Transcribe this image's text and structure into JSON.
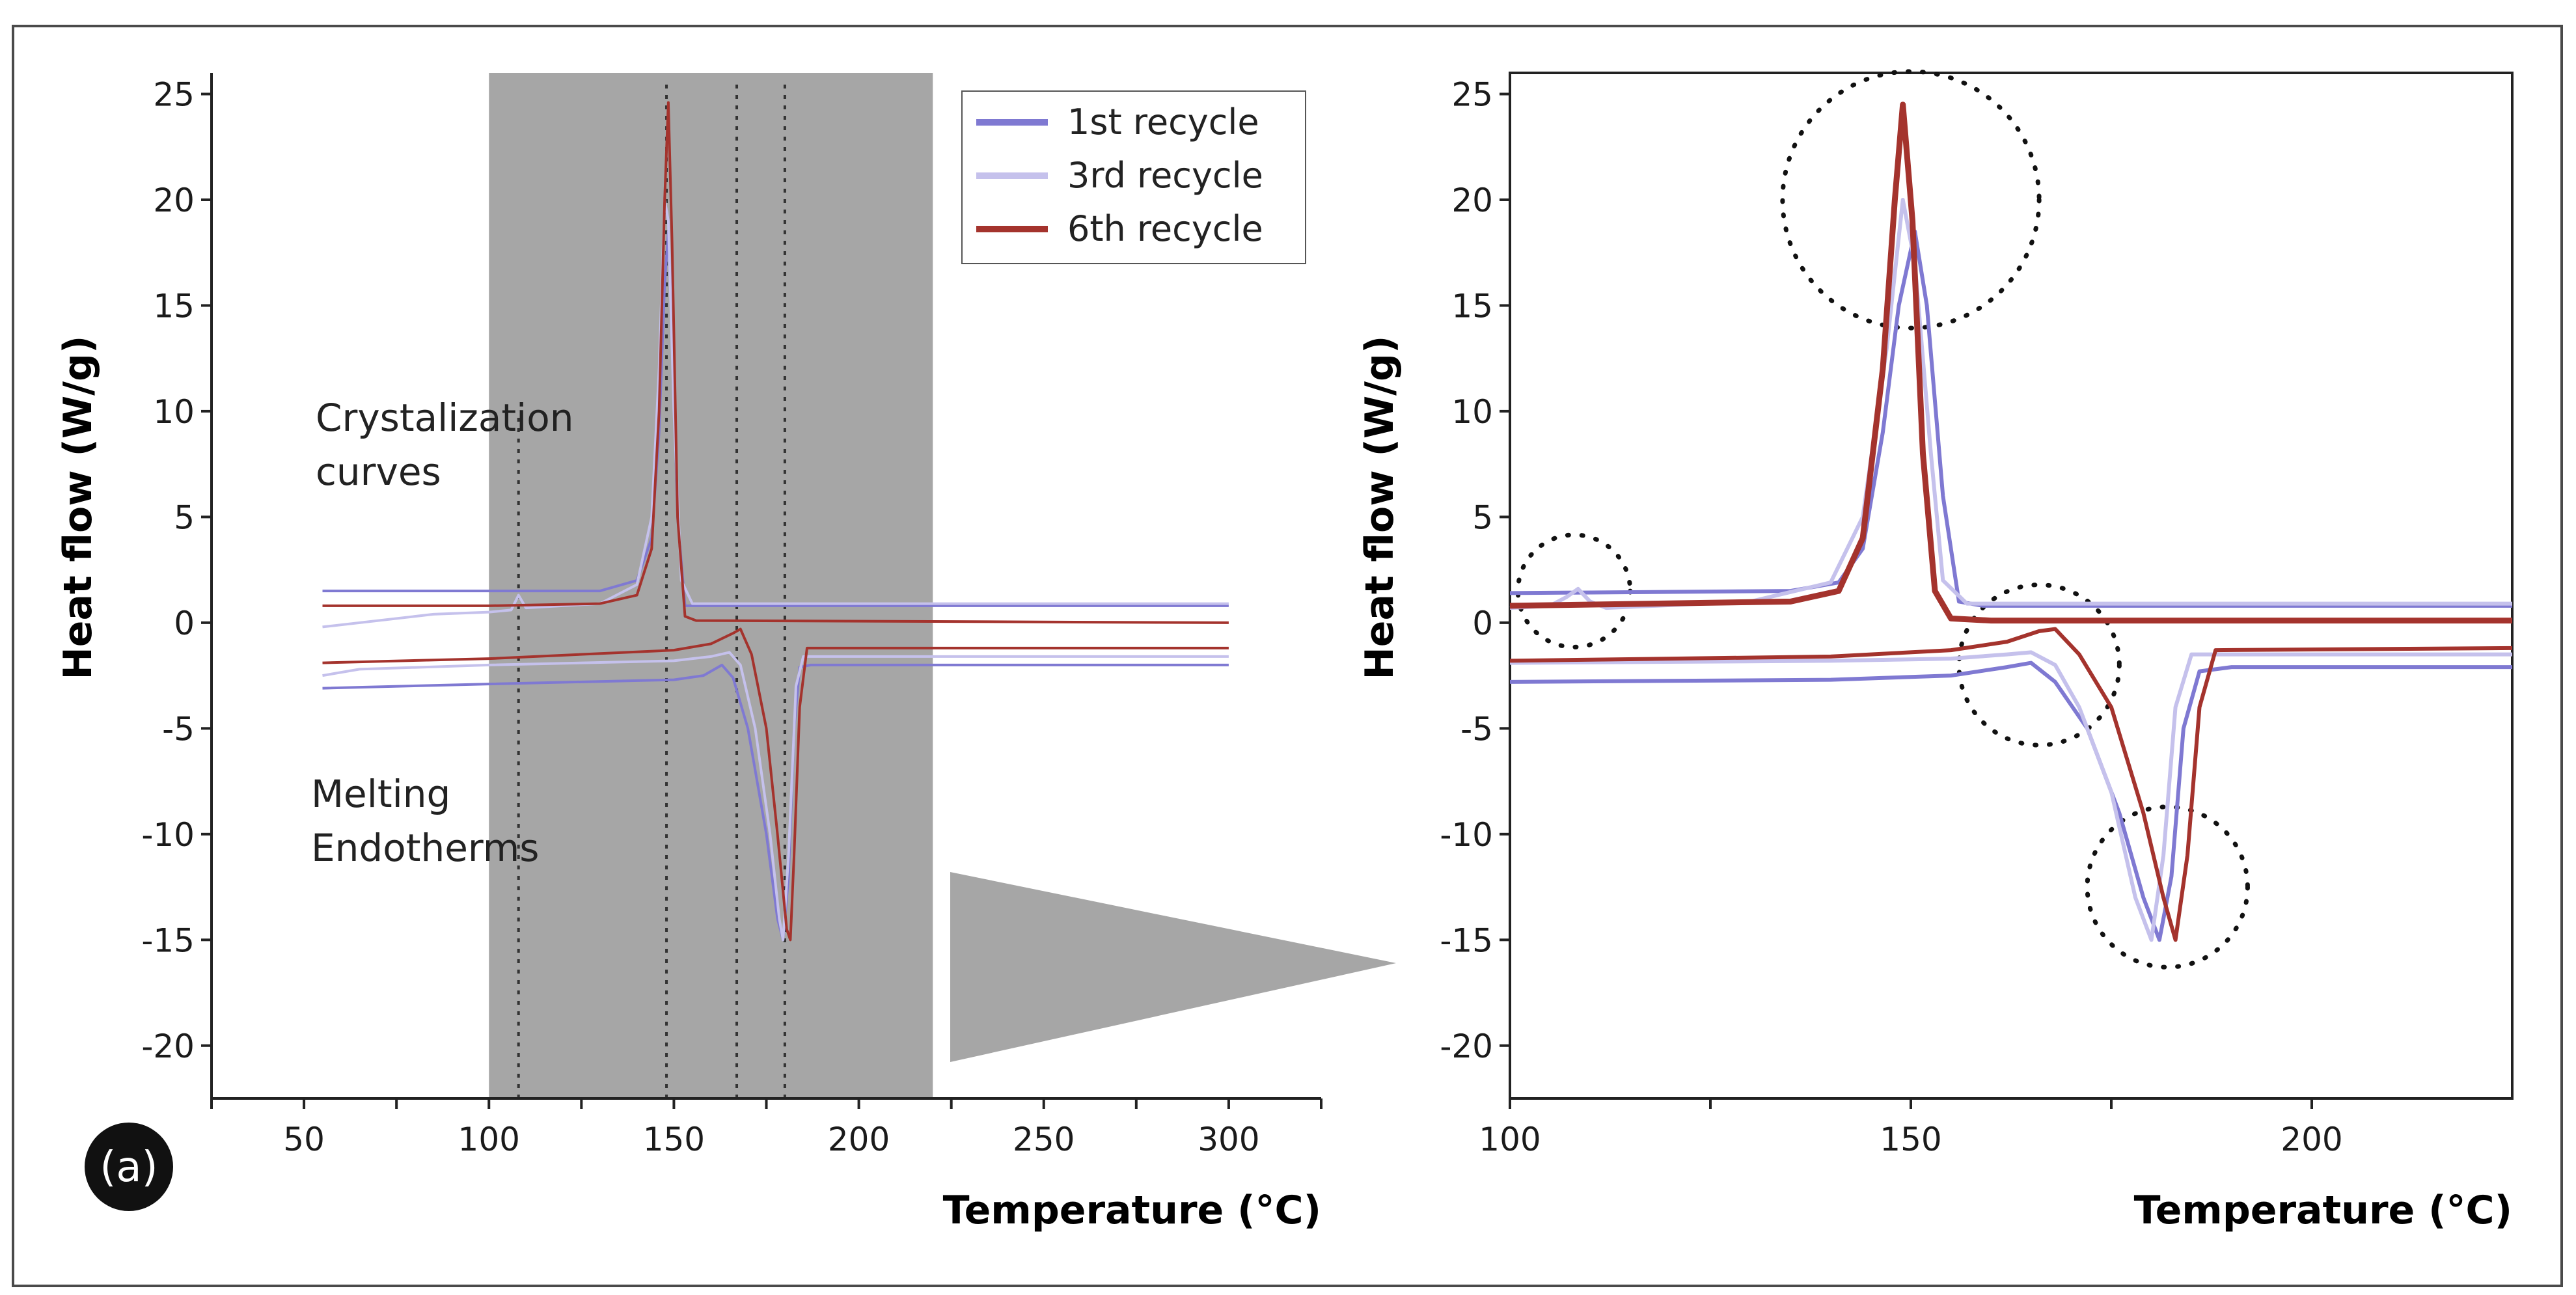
{
  "chart_data": [
    {
      "type": "line",
      "panel": "left",
      "panel_label": "(a)",
      "xlabel": "Temperature (°C)",
      "ylabel": "Heat flow (W/g)",
      "xlim": [
        25,
        325
      ],
      "ylim": [
        -22.5,
        26
      ],
      "xticks": [
        50,
        100,
        150,
        200,
        250,
        300
      ],
      "yticks": [
        25,
        20,
        15,
        10,
        5,
        0,
        -5,
        -10,
        -15,
        -20
      ],
      "shaded_region": [
        100,
        220
      ],
      "vlines": [
        108,
        148,
        167,
        180
      ],
      "annotations": [
        "Crystalization",
        "curves",
        "Melting",
        "Endotherms"
      ],
      "legend": [
        "1st recycle",
        "3rd recycle",
        "6th recycle"
      ],
      "series": [
        {
          "name": "1st recycle",
          "color": "#7f79d2",
          "curve": "cool",
          "points": [
            [
              55,
              1.5
            ],
            [
              100,
              1.5
            ],
            [
              130,
              1.5
            ],
            [
              140,
              2.0
            ],
            [
              144,
              4.0
            ],
            [
              146,
              9
            ],
            [
              147.5,
              16
            ],
            [
              148.5,
              18.5
            ],
            [
              149.5,
              14
            ],
            [
              151,
              5
            ],
            [
              153,
              0.8
            ],
            [
              156,
              0.8
            ],
            [
              300,
              0.8
            ]
          ]
        },
        {
          "name": "1st recycle",
          "color": "#7f79d2",
          "curve": "heat",
          "points": [
            [
              55,
              -3.1
            ],
            [
              100,
              -2.9
            ],
            [
              150,
              -2.7
            ],
            [
              158,
              -2.5
            ],
            [
              163,
              -2.0
            ],
            [
              166,
              -2.6
            ],
            [
              170,
              -5
            ],
            [
              175,
              -10
            ],
            [
              178,
              -14
            ],
            [
              179.5,
              -15
            ],
            [
              181,
              -12
            ],
            [
              182.5,
              -5
            ],
            [
              184,
              -2.1
            ],
            [
              187,
              -2.0
            ],
            [
              300,
              -2.0
            ]
          ]
        },
        {
          "name": "3rd recycle",
          "color": "#c5c1ec",
          "curve": "cool",
          "points": [
            [
              55,
              -0.2
            ],
            [
              85,
              0.4
            ],
            [
              100,
              0.5
            ],
            [
              106,
              0.6
            ],
            [
              108,
              1.3
            ],
            [
              110,
              0.7
            ],
            [
              130,
              0.9
            ],
            [
              140,
              1.8
            ],
            [
              144,
              5
            ],
            [
              146,
              12
            ],
            [
              147.5,
              20
            ],
            [
              148.5,
              19
            ],
            [
              150,
              10
            ],
            [
              152,
              2
            ],
            [
              155,
              0.9
            ],
            [
              300,
              0.9
            ]
          ]
        },
        {
          "name": "3rd recycle",
          "color": "#c5c1ec",
          "curve": "heat",
          "points": [
            [
              55,
              -2.5
            ],
            [
              65,
              -2.2
            ],
            [
              100,
              -2.0
            ],
            [
              150,
              -1.8
            ],
            [
              160,
              -1.6
            ],
            [
              165,
              -1.4
            ],
            [
              168,
              -2.0
            ],
            [
              172,
              -5
            ],
            [
              176,
              -10
            ],
            [
              178.5,
              -14
            ],
            [
              179.5,
              -15
            ],
            [
              181,
              -11
            ],
            [
              183,
              -3
            ],
            [
              185,
              -1.6
            ],
            [
              300,
              -1.6
            ]
          ]
        },
        {
          "name": "6th recycle",
          "color": "#a4332d",
          "curve": "cool",
          "points": [
            [
              55,
              0.8
            ],
            [
              100,
              0.8
            ],
            [
              130,
              0.9
            ],
            [
              140,
              1.3
            ],
            [
              144,
              3.5
            ],
            [
              146,
              10
            ],
            [
              147.5,
              20
            ],
            [
              148.5,
              24.6
            ],
            [
              149.5,
              18
            ],
            [
              151,
              5
            ],
            [
              153,
              0.3
            ],
            [
              156,
              0.1
            ],
            [
              300,
              0.0
            ]
          ]
        },
        {
          "name": "6th recycle",
          "color": "#a4332d",
          "curve": "heat",
          "points": [
            [
              55,
              -1.9
            ],
            [
              100,
              -1.7
            ],
            [
              150,
              -1.3
            ],
            [
              160,
              -1.0
            ],
            [
              166,
              -0.5
            ],
            [
              168,
              -0.3
            ],
            [
              171,
              -1.5
            ],
            [
              175,
              -5
            ],
            [
              178,
              -10
            ],
            [
              180.5,
              -14.5
            ],
            [
              181.5,
              -15
            ],
            [
              182.5,
              -11
            ],
            [
              184,
              -4
            ],
            [
              186,
              -1.2
            ],
            [
              300,
              -1.2
            ]
          ]
        }
      ]
    },
    {
      "type": "line",
      "panel": "right",
      "xlabel": "Temperature (°C)",
      "ylabel": "Heat flow (W/g)",
      "xlim": [
        100,
        225
      ],
      "ylim": [
        -22.5,
        26
      ],
      "xticks": [
        100,
        150,
        200
      ],
      "xticks_minor": [
        125,
        175
      ],
      "yticks": [
        25,
        20,
        15,
        10,
        5,
        0,
        -5,
        -10,
        -15,
        -20
      ],
      "highlight_circles": [
        {
          "cx": 108,
          "cy": 1.5,
          "r_data_x": 7
        },
        {
          "cx": 150,
          "cy": 20,
          "r_data_x": 16
        },
        {
          "cx": 166,
          "cy": -2,
          "r_data_x": 10
        },
        {
          "cx": 182,
          "cy": -12.5,
          "r_data_x": 10
        }
      ],
      "series": [
        {
          "name": "1st recycle",
          "color": "#7f79d2",
          "curve": "cool",
          "points": [
            [
              100,
              1.4
            ],
            [
              135,
              1.5
            ],
            [
              141,
              1.9
            ],
            [
              144,
              3.5
            ],
            [
              146.5,
              9
            ],
            [
              148.5,
              15
            ],
            [
              150.5,
              18.5
            ],
            [
              152,
              15
            ],
            [
              154,
              6
            ],
            [
              156,
              1.0
            ],
            [
              159,
              0.8
            ],
            [
              225,
              0.8
            ]
          ]
        },
        {
          "name": "1st recycle",
          "color": "#7f79d2",
          "curve": "heat",
          "points": [
            [
              100,
              -2.8
            ],
            [
              140,
              -2.7
            ],
            [
              155,
              -2.5
            ],
            [
              162,
              -2.1
            ],
            [
              165,
              -1.9
            ],
            [
              168,
              -2.8
            ],
            [
              172,
              -5
            ],
            [
              176,
              -9
            ],
            [
              179,
              -13
            ],
            [
              181,
              -15
            ],
            [
              182.5,
              -12
            ],
            [
              184,
              -5
            ],
            [
              186,
              -2.3
            ],
            [
              190,
              -2.1
            ],
            [
              225,
              -2.1
            ]
          ]
        },
        {
          "name": "3rd recycle",
          "color": "#c5c1ec",
          "curve": "cool",
          "points": [
            [
              100,
              0.7
            ],
            [
              105,
              0.8
            ],
            [
              107,
              1.2
            ],
            [
              108.5,
              1.6
            ],
            [
              110,
              1.0
            ],
            [
              112,
              0.7
            ],
            [
              130,
              1.0
            ],
            [
              140,
              1.9
            ],
            [
              144,
              5
            ],
            [
              147,
              13
            ],
            [
              149,
              20
            ],
            [
              150.5,
              17
            ],
            [
              152.5,
              8
            ],
            [
              154,
              2
            ],
            [
              157,
              0.9
            ],
            [
              225,
              0.9
            ]
          ]
        },
        {
          "name": "3rd recycle",
          "color": "#c5c1ec",
          "curve": "heat",
          "points": [
            [
              100,
              -1.9
            ],
            [
              140,
              -1.8
            ],
            [
              155,
              -1.7
            ],
            [
              162,
              -1.5
            ],
            [
              165,
              -1.4
            ],
            [
              168,
              -2.0
            ],
            [
              171,
              -4
            ],
            [
              175,
              -8
            ],
            [
              178,
              -13
            ],
            [
              180,
              -15
            ],
            [
              181.5,
              -11
            ],
            [
              183,
              -4
            ],
            [
              185,
              -1.5
            ],
            [
              225,
              -1.5
            ]
          ]
        },
        {
          "name": "6th recycle",
          "color": "#a4332d",
          "curve": "cool",
          "points": [
            [
              100,
              0.8
            ],
            [
              135,
              1.0
            ],
            [
              141,
              1.5
            ],
            [
              144,
              4
            ],
            [
              146.5,
              12
            ],
            [
              148,
              20
            ],
            [
              149,
              24.5
            ],
            [
              150.2,
              19
            ],
            [
              151.5,
              8
            ],
            [
              153,
              1.5
            ],
            [
              155,
              0.2
            ],
            [
              160,
              0.1
            ],
            [
              225,
              0.1
            ]
          ]
        },
        {
          "name": "6th recycle",
          "color": "#a4332d",
          "curve": "heat",
          "points": [
            [
              100,
              -1.8
            ],
            [
              140,
              -1.6
            ],
            [
              155,
              -1.3
            ],
            [
              162,
              -0.9
            ],
            [
              166,
              -0.4
            ],
            [
              168,
              -0.3
            ],
            [
              171,
              -1.5
            ],
            [
              175,
              -4
            ],
            [
              179,
              -9
            ],
            [
              181.5,
              -13
            ],
            [
              183,
              -15
            ],
            [
              184.5,
              -11
            ],
            [
              186,
              -4
            ],
            [
              188,
              -1.3
            ],
            [
              225,
              -1.2
            ]
          ]
        }
      ]
    }
  ]
}
